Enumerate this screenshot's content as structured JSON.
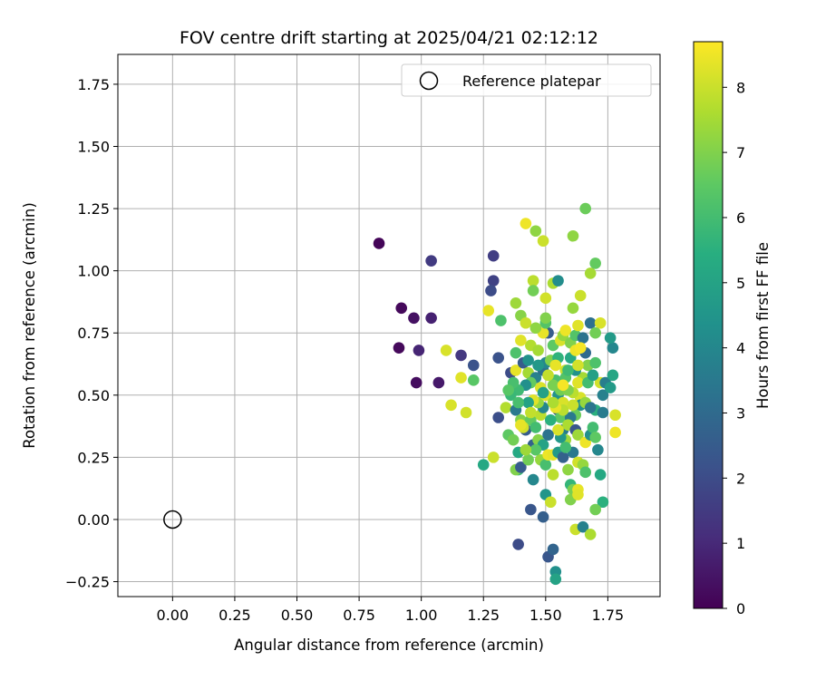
{
  "chart_data": {
    "type": "scatter",
    "title": "FOV centre drift starting at 2025/04/21 02:12:12",
    "xlabel": "Angular distance from reference (arcmin)",
    "ylabel": "Rotation from reference (arcmin)",
    "colorbar_label": "Hours from first FF file",
    "xlim": [
      -0.22,
      1.96
    ],
    "ylim": [
      -0.31,
      1.87
    ],
    "clim": [
      0,
      8.7
    ],
    "x_ticks": [
      "0.00",
      "0.25",
      "0.50",
      "0.75",
      "1.00",
      "1.25",
      "1.50",
      "1.75"
    ],
    "y_ticks": [
      "−0.25",
      "0.00",
      "0.25",
      "0.50",
      "0.75",
      "1.00",
      "1.25",
      "1.50",
      "1.75"
    ],
    "colorbar_ticks": [
      "0",
      "1",
      "2",
      "3",
      "4",
      "5",
      "6",
      "7",
      "8"
    ],
    "grid": true,
    "legend": {
      "position": "top-right",
      "entries": [
        "Reference platepar"
      ]
    },
    "colormap": "viridis",
    "reference_point": {
      "x": 0.0,
      "y": 0.0
    },
    "points": [
      [
        0.83,
        1.11,
        0.1
      ],
      [
        0.92,
        0.85,
        0.2
      ],
      [
        0.97,
        0.81,
        0.4
      ],
      [
        1.04,
        0.81,
        0.8
      ],
      [
        0.91,
        0.69,
        0.2
      ],
      [
        0.99,
        0.68,
        0.9
      ],
      [
        0.98,
        0.55,
        0.3
      ],
      [
        1.07,
        0.55,
        0.6
      ],
      [
        1.04,
        1.04,
        1.5
      ],
      [
        1.29,
        1.06,
        1.6
      ],
      [
        1.29,
        0.96,
        1.7
      ],
      [
        1.28,
        0.92,
        2.0
      ],
      [
        1.16,
        0.66,
        1.4
      ],
      [
        1.21,
        0.62,
        2.2
      ],
      [
        1.1,
        0.68,
        8.2
      ],
      [
        1.16,
        0.57,
        8.3
      ],
      [
        1.12,
        0.46,
        8.2
      ],
      [
        1.18,
        0.43,
        8.1
      ],
      [
        1.21,
        0.56,
        6.4
      ],
      [
        1.25,
        0.22,
        5.2
      ],
      [
        1.29,
        0.25,
        8.0
      ],
      [
        1.27,
        0.84,
        8.4
      ],
      [
        1.32,
        0.8,
        6.2
      ],
      [
        1.31,
        0.65,
        2.2
      ],
      [
        1.31,
        0.41,
        2.1
      ],
      [
        1.35,
        0.34,
        6.5
      ],
      [
        1.37,
        0.32,
        6.8
      ],
      [
        1.39,
        -0.1,
        2.0
      ],
      [
        1.39,
        0.2,
        5.8
      ],
      [
        1.38,
        0.2,
        7.0
      ],
      [
        1.4,
        0.21,
        2.5
      ],
      [
        1.44,
        0.04,
        2.3
      ],
      [
        1.45,
        0.16,
        4.0
      ],
      [
        1.49,
        0.01,
        2.6
      ],
      [
        1.5,
        0.1,
        4.5
      ],
      [
        1.51,
        -0.15,
        2.3
      ],
      [
        1.53,
        -0.12,
        2.8
      ],
      [
        1.54,
        -0.21,
        4.3
      ],
      [
        1.54,
        -0.24,
        5.0
      ],
      [
        1.42,
        1.19,
        8.5
      ],
      [
        1.46,
        1.16,
        7.2
      ],
      [
        1.49,
        1.12,
        8.0
      ],
      [
        1.45,
        0.96,
        7.8
      ],
      [
        1.45,
        0.92,
        6.8
      ],
      [
        1.5,
        0.89,
        8.1
      ],
      [
        1.53,
        0.95,
        7.6
      ],
      [
        1.55,
        0.96,
        4.2
      ],
      [
        1.38,
        0.87,
        7.4
      ],
      [
        1.4,
        0.82,
        7.1
      ],
      [
        1.42,
        0.79,
        8.0
      ],
      [
        1.44,
        0.7,
        7.7
      ],
      [
        1.4,
        0.72,
        8.3
      ],
      [
        1.38,
        0.67,
        6.2
      ],
      [
        1.36,
        0.59,
        2.0
      ],
      [
        1.38,
        0.6,
        8.4
      ],
      [
        1.41,
        0.63,
        2.5
      ],
      [
        1.43,
        0.59,
        7.5
      ],
      [
        1.46,
        0.57,
        3.8
      ],
      [
        1.44,
        0.55,
        6.6
      ],
      [
        1.42,
        0.54,
        4.3
      ],
      [
        1.39,
        0.52,
        5.9
      ],
      [
        1.37,
        0.55,
        6.1
      ],
      [
        1.34,
        0.45,
        7.7
      ],
      [
        1.38,
        0.44,
        3.5
      ],
      [
        1.36,
        0.5,
        5.8
      ],
      [
        1.4,
        0.4,
        7.0
      ],
      [
        1.42,
        0.36,
        2.5
      ],
      [
        1.44,
        0.4,
        6.6
      ],
      [
        1.41,
        0.37,
        8.1
      ],
      [
        1.39,
        0.27,
        5.2
      ],
      [
        1.43,
        0.24,
        6.8
      ],
      [
        1.45,
        0.3,
        2.7
      ],
      [
        1.47,
        0.32,
        7.1
      ],
      [
        1.49,
        0.3,
        5.0
      ],
      [
        1.48,
        0.24,
        7.3
      ],
      [
        1.5,
        0.22,
        6.1
      ],
      [
        1.51,
        0.26,
        8.5
      ],
      [
        1.53,
        0.26,
        8.4
      ],
      [
        1.53,
        0.18,
        7.8
      ],
      [
        1.52,
        0.07,
        8.0
      ],
      [
        1.48,
        0.42,
        7.8
      ],
      [
        1.49,
        0.45,
        4.0
      ],
      [
        1.47,
        0.47,
        7.3
      ],
      [
        1.5,
        0.5,
        8.3
      ],
      [
        1.48,
        0.53,
        8.2
      ],
      [
        1.49,
        0.6,
        3.2
      ],
      [
        1.5,
        0.63,
        4.0
      ],
      [
        1.52,
        0.64,
        7.0
      ],
      [
        1.53,
        0.7,
        6.5
      ],
      [
        1.51,
        0.75,
        2.5
      ],
      [
        1.49,
        0.75,
        8.4
      ],
      [
        1.5,
        0.79,
        6.3
      ],
      [
        1.5,
        0.81,
        7.0
      ],
      [
        1.47,
        0.68,
        7.5
      ],
      [
        1.46,
        0.77,
        7.2
      ],
      [
        1.54,
        0.56,
        6.1
      ],
      [
        1.55,
        0.5,
        4.4
      ],
      [
        1.56,
        0.52,
        6.8
      ],
      [
        1.57,
        0.47,
        8.2
      ],
      [
        1.55,
        0.44,
        2.8
      ],
      [
        1.56,
        0.41,
        6.5
      ],
      [
        1.57,
        0.36,
        3.6
      ],
      [
        1.58,
        0.32,
        7.4
      ],
      [
        1.55,
        0.27,
        4.7
      ],
      [
        1.57,
        0.25,
        2.7
      ],
      [
        1.59,
        0.2,
        7.2
      ],
      [
        1.6,
        0.14,
        5.7
      ],
      [
        1.61,
        0.12,
        6.9
      ],
      [
        1.6,
        0.08,
        7.0
      ],
      [
        1.63,
        0.12,
        8.4
      ],
      [
        1.63,
        0.1,
        8.3
      ],
      [
        1.62,
        -0.04,
        8.0
      ],
      [
        1.65,
        -0.03,
        3.8
      ],
      [
        1.68,
        -0.06,
        7.6
      ],
      [
        1.55,
        0.65,
        5.6
      ],
      [
        1.56,
        0.72,
        8.2
      ],
      [
        1.57,
        0.74,
        7.3
      ],
      [
        1.58,
        0.76,
        8.5
      ],
      [
        1.6,
        0.71,
        7.0
      ],
      [
        1.62,
        0.74,
        6.3
      ],
      [
        1.63,
        0.78,
        8.3
      ],
      [
        1.61,
        0.85,
        7.3
      ],
      [
        1.64,
        0.9,
        8.0
      ],
      [
        1.61,
        1.14,
        7.2
      ],
      [
        1.66,
        1.25,
        6.7
      ],
      [
        1.68,
        0.99,
        7.5
      ],
      [
        1.7,
        1.03,
        6.6
      ],
      [
        1.68,
        0.79,
        3.2
      ],
      [
        1.72,
        0.79,
        8.2
      ],
      [
        1.7,
        0.75,
        6.8
      ],
      [
        1.65,
        0.73,
        3.3
      ],
      [
        1.66,
        0.67,
        3.0
      ],
      [
        1.67,
        0.62,
        7.0
      ],
      [
        1.7,
        0.63,
        6.2
      ],
      [
        1.65,
        0.57,
        7.5
      ],
      [
        1.63,
        0.55,
        8.3
      ],
      [
        1.64,
        0.49,
        8.2
      ],
      [
        1.61,
        0.51,
        7.8
      ],
      [
        1.59,
        0.52,
        7.0
      ],
      [
        1.58,
        0.6,
        8.0
      ],
      [
        1.6,
        0.65,
        5.2
      ],
      [
        1.62,
        0.68,
        8.5
      ],
      [
        1.64,
        0.69,
        8.6
      ],
      [
        1.64,
        0.46,
        4.2
      ],
      [
        1.62,
        0.42,
        6.7
      ],
      [
        1.6,
        0.41,
        3.5
      ],
      [
        1.59,
        0.38,
        7.6
      ],
      [
        1.62,
        0.36,
        2.3
      ],
      [
        1.63,
        0.34,
        7.4
      ],
      [
        1.61,
        0.27,
        3.5
      ],
      [
        1.63,
        0.23,
        8.1
      ],
      [
        1.65,
        0.22,
        7.3
      ],
      [
        1.66,
        0.19,
        6.2
      ],
      [
        1.66,
        0.31,
        8.5
      ],
      [
        1.68,
        0.34,
        4.3
      ],
      [
        1.69,
        0.37,
        6.0
      ],
      [
        1.7,
        0.33,
        6.5
      ],
      [
        1.71,
        0.28,
        4.0
      ],
      [
        1.7,
        0.44,
        5.5
      ],
      [
        1.73,
        0.5,
        3.8
      ],
      [
        1.72,
        0.55,
        8.1
      ],
      [
        1.74,
        0.55,
        3.7
      ],
      [
        1.76,
        0.53,
        4.7
      ],
      [
        1.73,
        0.43,
        3.6
      ],
      [
        1.78,
        0.42,
        8.2
      ],
      [
        1.78,
        0.35,
        8.5
      ],
      [
        1.77,
        0.58,
        5.1
      ],
      [
        1.77,
        0.69,
        4.0
      ],
      [
        1.76,
        0.73,
        4.7
      ],
      [
        1.72,
        0.18,
        5.2
      ],
      [
        1.73,
        0.07,
        5.5
      ],
      [
        1.7,
        0.04,
        6.8
      ],
      [
        1.57,
        0.44,
        7.8
      ],
      [
        1.58,
        0.57,
        6.3
      ],
      [
        1.53,
        0.54,
        6.9
      ],
      [
        1.54,
        0.45,
        8.4
      ],
      [
        1.52,
        0.4,
        5.5
      ],
      [
        1.46,
        0.37,
        6.0
      ],
      [
        1.45,
        0.48,
        8.3
      ],
      [
        1.43,
        0.47,
        5.0
      ],
      [
        1.39,
        0.47,
        6.1
      ],
      [
        1.4,
        0.38,
        8.4
      ],
      [
        1.56,
        0.33,
        4.6
      ],
      [
        1.58,
        0.29,
        6.0
      ],
      [
        1.35,
        0.52,
        6.4
      ],
      [
        1.47,
        0.62,
        4.6
      ],
      [
        1.51,
        0.58,
        7.9
      ],
      [
        1.62,
        0.6,
        4.4
      ],
      [
        1.67,
        0.55,
        6.0
      ],
      [
        1.66,
        0.47,
        7.3
      ],
      [
        1.68,
        0.45,
        3.4
      ],
      [
        1.61,
        0.46,
        8.0
      ],
      [
        1.53,
        0.47,
        7.6
      ],
      [
        1.55,
        0.36,
        8.2
      ],
      [
        1.46,
        0.28,
        6.4
      ],
      [
        1.59,
        0.6,
        5.9
      ],
      [
        1.69,
        0.58,
        4.9
      ],
      [
        1.44,
        0.43,
        7.9
      ],
      [
        1.51,
        0.34,
        3.3
      ],
      [
        1.57,
        0.54,
        8.6
      ],
      [
        1.63,
        0.62,
        8.1
      ],
      [
        1.49,
        0.51,
        4.9
      ],
      [
        1.43,
        0.64,
        4.4
      ],
      [
        1.54,
        0.62,
        8.4
      ],
      [
        1.42,
        0.28,
        7.4
      ]
    ]
  }
}
